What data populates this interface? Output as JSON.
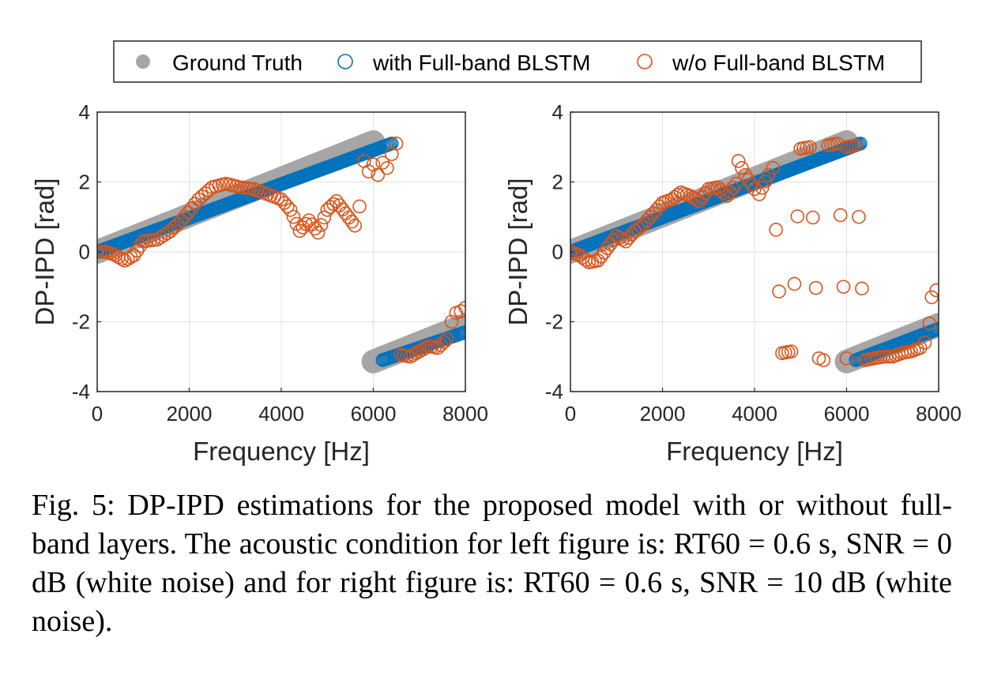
{
  "legend": {
    "items": [
      {
        "label": "Ground Truth",
        "marker": "filled-circle",
        "color": "#a6a6a6"
      },
      {
        "label": "with Full-band BLSTM",
        "marker": "open-circle",
        "color": "#0072bd"
      },
      {
        "label": "w/o Full-band BLSTM",
        "marker": "open-circle",
        "color": "#d95319"
      }
    ]
  },
  "chart_data": [
    {
      "type": "scatter",
      "panel": "left",
      "xlabel": "Frequency [Hz]",
      "ylabel": "DP-IPD [rad]",
      "xlim": [
        0,
        8000
      ],
      "ylim": [
        -4,
        4
      ],
      "xticks": [
        0,
        2000,
        4000,
        6000,
        8000
      ],
      "xtick_labels": [
        "0",
        "2000",
        "4000",
        "6000",
        "8000"
      ],
      "yticks": [
        -4,
        -2,
        0,
        2,
        4
      ],
      "ytick_labels": [
        "-4",
        "-2",
        "0",
        "2",
        "4"
      ],
      "grid": true,
      "series": [
        {
          "name": "Ground Truth",
          "points": [
            [
              0,
              0
            ],
            [
              6000,
              3.14
            ],
            [
              6000,
              -3.14
            ],
            [
              8000,
              -2.09
            ]
          ]
        },
        {
          "name": "with Full-band BLSTM",
          "points": [
            [
              0,
              0
            ],
            [
              6400,
              3.1
            ],
            [
              6200,
              -3.1
            ],
            [
              8000,
              -2.3
            ]
          ]
        },
        {
          "name": "w/o Full-band BLSTM",
          "points": [
            [
              0,
              0
            ],
            [
              200,
              0
            ],
            [
              400,
              -0.1
            ],
            [
              600,
              -0.25
            ],
            [
              800,
              -0.1
            ],
            [
              1000,
              0.3
            ],
            [
              1300,
              0.35
            ],
            [
              1600,
              0.6
            ],
            [
              1900,
              1.0
            ],
            [
              2200,
              1.5
            ],
            [
              2500,
              1.85
            ],
            [
              2800,
              1.95
            ],
            [
              3100,
              1.85
            ],
            [
              3400,
              1.8
            ],
            [
              3700,
              1.65
            ],
            [
              4000,
              1.5
            ],
            [
              4200,
              1.2
            ],
            [
              4400,
              0.6
            ],
            [
              4600,
              0.9
            ],
            [
              4800,
              0.55
            ],
            [
              5000,
              1.2
            ],
            [
              5200,
              1.45
            ],
            [
              5400,
              1.1
            ],
            [
              5600,
              0.75
            ],
            [
              5700,
              1.3
            ],
            [
              5800,
              2.6
            ],
            [
              5900,
              2.3
            ],
            [
              6000,
              2.5
            ],
            [
              6100,
              2.2
            ],
            [
              6200,
              2.55
            ],
            [
              6300,
              2.4
            ],
            [
              6400,
              2.8
            ],
            [
              6500,
              3.1
            ],
            [
              6600,
              -2.95
            ],
            [
              6800,
              -3.0
            ],
            [
              7000,
              -2.85
            ],
            [
              7200,
              -2.7
            ],
            [
              7400,
              -2.75
            ],
            [
              7600,
              -2.5
            ],
            [
              7700,
              -2.0
            ],
            [
              7800,
              -1.75
            ],
            [
              7900,
              -1.7
            ],
            [
              8000,
              -1.6
            ]
          ]
        }
      ]
    },
    {
      "type": "scatter",
      "panel": "right",
      "xlabel": "Frequency [Hz]",
      "ylabel": "DP-IPD [rad]",
      "xlim": [
        0,
        8000
      ],
      "ylim": [
        -4,
        4
      ],
      "xticks": [
        0,
        2000,
        4000,
        6000,
        8000
      ],
      "xtick_labels": [
        "0",
        "2000",
        "4000",
        "6000",
        "8000"
      ],
      "yticks": [
        -4,
        -2,
        0,
        2,
        4
      ],
      "ytick_labels": [
        "-4",
        "-2",
        "0",
        "2",
        "4"
      ],
      "grid": true,
      "series": [
        {
          "name": "Ground Truth",
          "points": [
            [
              0,
              0
            ],
            [
              6000,
              3.14
            ],
            [
              6000,
              -3.14
            ],
            [
              8000,
              -2.09
            ]
          ]
        },
        {
          "name": "with Full-band BLSTM",
          "points": [
            [
              0,
              0
            ],
            [
              6300,
              3.1
            ],
            [
              6200,
              -3.1
            ],
            [
              8000,
              -2.2
            ]
          ]
        },
        {
          "name": "w/o Full-band BLSTM",
          "points": [
            [
              0,
              0
            ],
            [
              200,
              -0.1
            ],
            [
              400,
              -0.3
            ],
            [
              600,
              -0.25
            ],
            [
              800,
              0.1
            ],
            [
              1000,
              0.45
            ],
            [
              1200,
              0.3
            ],
            [
              1400,
              0.6
            ],
            [
              1600,
              0.8
            ],
            [
              1800,
              1.1
            ],
            [
              2000,
              1.4
            ],
            [
              2200,
              1.5
            ],
            [
              2400,
              1.7
            ],
            [
              2600,
              1.6
            ],
            [
              2800,
              1.45
            ],
            [
              3000,
              1.8
            ],
            [
              3200,
              1.85
            ],
            [
              3400,
              1.6
            ],
            [
              3600,
              1.95
            ],
            [
              3650,
              2.6
            ],
            [
              3800,
              2.2
            ],
            [
              4000,
              1.8
            ],
            [
              4100,
              1.65
            ],
            [
              4300,
              2.2
            ],
            [
              4400,
              2.4
            ],
            [
              4600,
              -2.9
            ],
            [
              4800,
              -2.85
            ],
            [
              5000,
              2.95
            ],
            [
              5200,
              3.0
            ],
            [
              5400,
              -3.05
            ],
            [
              5500,
              -3.1
            ],
            [
              5600,
              3.05
            ],
            [
              5800,
              3.1
            ],
            [
              6000,
              -3.05
            ],
            [
              6000,
              3.0
            ],
            [
              6200,
              3.05
            ],
            [
              6400,
              -3.1
            ],
            [
              6600,
              -3.05
            ],
            [
              6800,
              -3.0
            ],
            [
              7000,
              -3.0
            ],
            [
              7200,
              -2.9
            ],
            [
              7400,
              -2.85
            ],
            [
              7600,
              -2.75
            ],
            [
              7700,
              -2.6
            ],
            [
              7800,
              -2.05
            ],
            [
              7850,
              -1.3
            ],
            [
              7950,
              -1.1
            ]
          ]
        }
      ]
    }
  ],
  "caption": "Fig. 5: DP-IPD estimations for the proposed model with or without full-band layers. The acoustic condition for left figure is: RT60 = 0.6 s, SNR = 0 dB (white noise) and for right figure is: RT60 = 0.6 s, SNR = 10 dB (white noise)."
}
